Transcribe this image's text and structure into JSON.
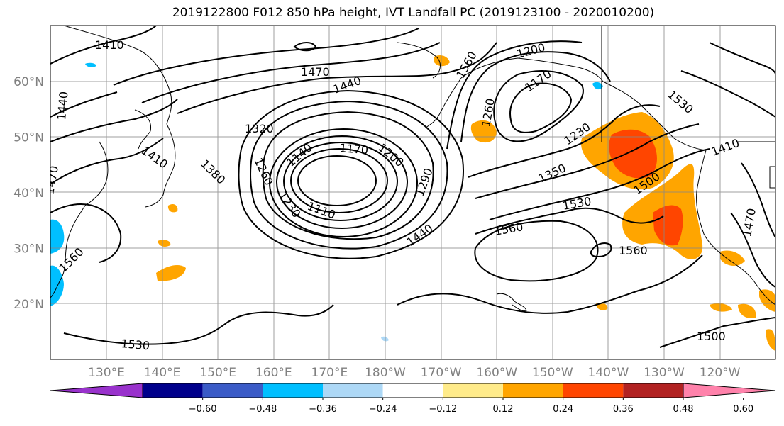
{
  "title": "2019122800 F012 850 hPa height, IVT Landfall PC (2019123100 - 2020010200)",
  "map": {
    "lat_labels": [
      {
        "text": "60°N",
        "lat": 60
      },
      {
        "text": "50°N",
        "lat": 50
      },
      {
        "text": "40°N",
        "lat": 40
      },
      {
        "text": "30°N",
        "lat": 30
      },
      {
        "text": "20°N",
        "lat": 20
      }
    ],
    "lon_labels": [
      {
        "text": "130°E",
        "lon": 130
      },
      {
        "text": "140°E",
        "lon": 140
      },
      {
        "text": "150°E",
        "lon": 150
      },
      {
        "text": "160°E",
        "lon": 160
      },
      {
        "text": "170°E",
        "lon": 170
      },
      {
        "text": "180°W",
        "lon": 180
      },
      {
        "text": "170°W",
        "lon": 190
      },
      {
        "text": "160°W",
        "lon": 200
      },
      {
        "text": "150°W",
        "lon": 210
      },
      {
        "text": "140°W",
        "lon": 220
      },
      {
        "text": "130°W",
        "lon": 230
      },
      {
        "text": "120°W",
        "lon": 240
      }
    ],
    "contour_labels": [
      "1410",
      "1470",
      "1440",
      "1440",
      "1320",
      "1410",
      "1380",
      "1260",
      "1140",
      "1170",
      "1200",
      "1230",
      "1110",
      "1290",
      "1440",
      "1560",
      "1560",
      "1530",
      "1560",
      "1530",
      "1350",
      "1500",
      "1470",
      "1500",
      "1560",
      "1200",
      "1230",
      "1260",
      "1470",
      "1410",
      "1530",
      "1170"
    ]
  },
  "colorbar": {
    "ticks": [
      "−0.60",
      "−0.48",
      "−0.36",
      "−0.24",
      "−0.12",
      "0.12",
      "0.24",
      "0.36",
      "0.48",
      "0.60"
    ],
    "colors": [
      "#9932cc",
      "#00008b",
      "#3a5bc7",
      "#00bfff",
      "#add8f6",
      "#ffffff",
      "#ffeb8a",
      "#ffa500",
      "#ff4500",
      "#b22222",
      "#ff82ab"
    ]
  }
}
